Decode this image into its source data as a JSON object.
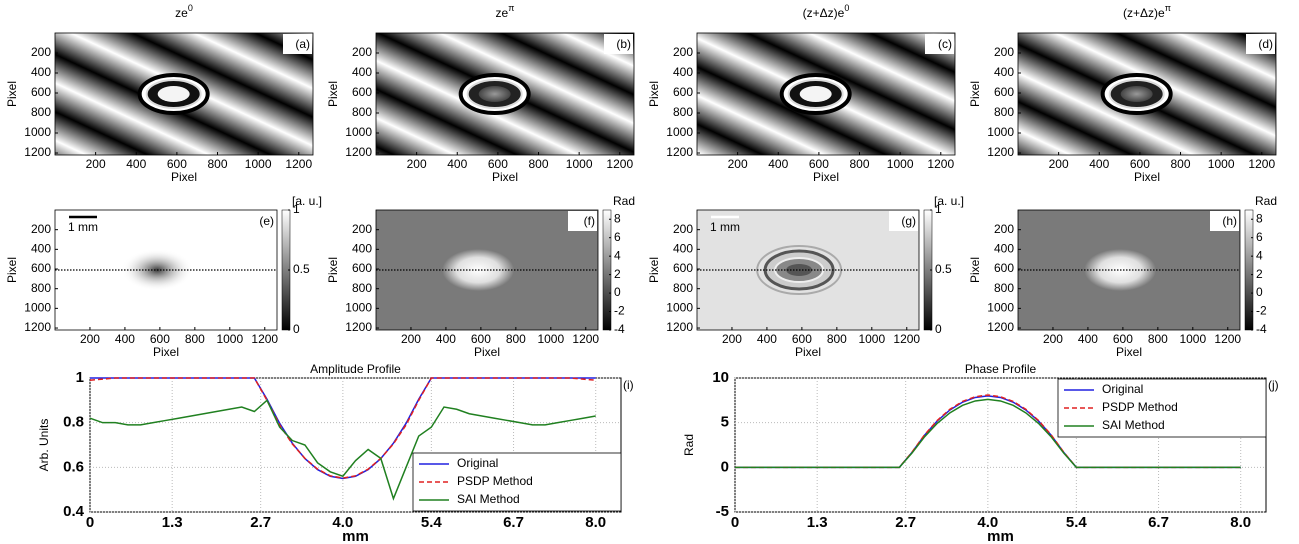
{
  "chart_data": [
    {
      "type": "image",
      "title": "ze",
      "title_superscript": "0",
      "panel_label": "(a)",
      "x_label": "Pixel",
      "y_label": "Pixel",
      "xlim": [
        0,
        1270
      ],
      "xticks": [
        200,
        400,
        600,
        800,
        1000,
        1200
      ],
      "ylim": [
        0,
        1220
      ],
      "yticks": [
        200,
        400,
        600,
        800,
        1000,
        1200
      ]
    },
    {
      "type": "image",
      "title": "ze",
      "title_superscript": "π",
      "panel_label": "(b)",
      "x_label": "Pixel",
      "y_label": "Pixel",
      "xlim": [
        0,
        1270
      ],
      "xticks": [
        200,
        400,
        600,
        800,
        1000,
        1200
      ],
      "ylim": [
        0,
        1220
      ],
      "yticks": [
        200,
        400,
        600,
        800,
        1000,
        1200
      ]
    },
    {
      "type": "image",
      "title": "(z+Δz)e",
      "title_superscript": "0",
      "panel_label": "(c)",
      "x_label": "Pixel",
      "y_label": "Pixel",
      "xlim": [
        0,
        1270
      ],
      "xticks": [
        200,
        400,
        600,
        800,
        1000,
        1200
      ],
      "ylim": [
        0,
        1220
      ],
      "yticks": [
        200,
        400,
        600,
        800,
        1000,
        1200
      ]
    },
    {
      "type": "image",
      "title": "(z+Δz)e",
      "title_superscript": "π",
      "panel_label": "(d)",
      "x_label": "Pixel",
      "y_label": "Pixel",
      "xlim": [
        0,
        1270
      ],
      "xticks": [
        200,
        400,
        600,
        800,
        1000,
        1200
      ],
      "ylim": [
        0,
        1220
      ],
      "yticks": [
        200,
        400,
        600,
        800,
        1000,
        1200
      ]
    },
    {
      "type": "image",
      "panel_label": "(e)",
      "scale_bar_label": "1 mm",
      "x_label": "Pixel",
      "y_label": "Pixel",
      "xlim": [
        0,
        1270
      ],
      "xticks": [
        200,
        400,
        600,
        800,
        1000,
        1200
      ],
      "ylim": [
        0,
        1220
      ],
      "yticks": [
        200,
        400,
        600,
        800,
        1000,
        1200
      ],
      "colorbar_label": "[a. u.]",
      "clim": [
        0,
        1
      ],
      "cticks": [
        0,
        0.5,
        1
      ]
    },
    {
      "type": "image",
      "panel_label": "(f)",
      "x_label": "Pixel",
      "y_label": "Pixel",
      "xlim": [
        0,
        1270
      ],
      "xticks": [
        200,
        400,
        600,
        800,
        1000,
        1200
      ],
      "ylim": [
        0,
        1220
      ],
      "yticks": [
        200,
        400,
        600,
        800,
        1000,
        1200
      ],
      "colorbar_label": "Rad",
      "clim": [
        -4,
        9
      ],
      "cticks": [
        -4,
        -2,
        0,
        2,
        4,
        6,
        8
      ]
    },
    {
      "type": "image",
      "panel_label": "(g)",
      "scale_bar_label": "1 mm",
      "x_label": "Pixel",
      "y_label": "Pixel",
      "xlim": [
        0,
        1270
      ],
      "xticks": [
        200,
        400,
        600,
        800,
        1000,
        1200
      ],
      "ylim": [
        0,
        1220
      ],
      "yticks": [
        200,
        400,
        600,
        800,
        1000,
        1200
      ],
      "colorbar_label": "[a. u.]",
      "clim": [
        0,
        1
      ],
      "cticks": [
        0,
        0.5,
        1
      ]
    },
    {
      "type": "image",
      "panel_label": "(h)",
      "x_label": "Pixel",
      "y_label": "Pixel",
      "xlim": [
        0,
        1270
      ],
      "xticks": [
        200,
        400,
        600,
        800,
        1000,
        1200
      ],
      "ylim": [
        0,
        1220
      ],
      "yticks": [
        200,
        400,
        600,
        800,
        1000,
        1200
      ],
      "colorbar_label": "Rad",
      "clim": [
        -4,
        9
      ],
      "cticks": [
        -4,
        -2,
        0,
        2,
        4,
        6,
        8
      ]
    },
    {
      "type": "line",
      "title": "Amplitude Profile",
      "panel_label": "(i)",
      "x_label": "mm",
      "y_label": "Arb. Units",
      "xlim": [
        0,
        8.4
      ],
      "xticks": [
        0,
        1.3,
        2.7,
        {
          "value": 4,
          "label": "4.0"
        },
        5.4,
        6.7,
        {
          "value": 8,
          "label": "8.0"
        }
      ],
      "ylim": [
        0.4,
        1
      ],
      "yticks": [
        0.4,
        0.6,
        0.8,
        1
      ],
      "grid": true,
      "legend": "lower right",
      "x": [
        0,
        0.2,
        0.4,
        0.6,
        0.8,
        1,
        1.2,
        1.4,
        1.6,
        1.8,
        2,
        2.2,
        2.4,
        2.6,
        2.8,
        3,
        3.2,
        3.4,
        3.6,
        3.8,
        4,
        4.2,
        4.4,
        4.6,
        4.8,
        5,
        5.2,
        5.4,
        5.6,
        5.8,
        6,
        6.2,
        6.4,
        6.6,
        6.8,
        7,
        7.2,
        7.4,
        7.6,
        7.8,
        8
      ],
      "series": [
        {
          "name": "Original",
          "color": "#2020e0",
          "linestyle": "solid",
          "values": [
            1,
            1,
            1,
            1,
            1,
            1,
            1,
            1,
            1,
            1,
            1,
            1,
            1,
            1,
            0.905,
            0.797,
            0.708,
            0.639,
            0.59,
            0.56,
            0.55,
            0.56,
            0.59,
            0.639,
            0.708,
            0.797,
            0.905,
            1,
            1,
            1,
            1,
            1,
            1,
            1,
            1,
            1,
            1,
            1,
            1,
            1,
            1
          ]
        },
        {
          "name": "PSDP Method",
          "color": "#e02020",
          "linestyle": "dashed",
          "values": [
            0.99,
            0.995,
            1,
            1,
            1,
            1,
            1,
            1,
            1,
            1,
            1,
            1,
            1,
            1,
            0.9,
            0.79,
            0.705,
            0.64,
            0.592,
            0.562,
            0.552,
            0.562,
            0.592,
            0.64,
            0.705,
            0.79,
            0.9,
            1,
            1,
            1,
            1,
            1,
            1,
            1,
            1,
            1,
            1,
            1,
            1,
            0.995,
            0.99
          ]
        },
        {
          "name": "SAI Method",
          "color": "#208020",
          "linestyle": "solid",
          "values": [
            0.82,
            0.8,
            0.8,
            0.79,
            0.79,
            0.8,
            0.81,
            0.82,
            0.83,
            0.84,
            0.85,
            0.86,
            0.87,
            0.85,
            0.9,
            0.78,
            0.72,
            0.7,
            0.62,
            0.58,
            0.56,
            0.63,
            0.68,
            0.64,
            0.46,
            0.6,
            0.74,
            0.78,
            0.87,
            0.86,
            0.84,
            0.83,
            0.82,
            0.81,
            0.8,
            0.79,
            0.79,
            0.8,
            0.81,
            0.82,
            0.83
          ]
        }
      ]
    },
    {
      "type": "line",
      "title": "Phase Profile",
      "panel_label": "(j)",
      "x_label": "mm",
      "y_label": "Rad",
      "xlim": [
        0,
        8.4
      ],
      "xticks": [
        0,
        1.3,
        2.7,
        {
          "value": 4,
          "label": "4.0"
        },
        5.4,
        6.7,
        {
          "value": 8,
          "label": "8.0"
        }
      ],
      "ylim": [
        -5,
        10
      ],
      "yticks": [
        -5,
        0,
        5,
        10
      ],
      "grid": true,
      "legend": "upper right",
      "x": [
        0,
        0.2,
        0.4,
        0.6,
        0.8,
        1,
        1.2,
        1.4,
        1.6,
        1.8,
        2,
        2.2,
        2.4,
        2.6,
        2.8,
        3,
        3.2,
        3.4,
        3.6,
        3.8,
        4,
        4.2,
        4.4,
        4.6,
        4.8,
        5,
        5.2,
        5.4,
        5.6,
        5.8,
        6,
        6.2,
        6.4,
        6.6,
        6.8,
        7,
        7.2,
        7.4,
        7.6,
        7.8,
        8
      ],
      "series": [
        {
          "name": "Original",
          "color": "#2020e0",
          "linestyle": "solid",
          "values": [
            0,
            0,
            0,
            0,
            0,
            0,
            0,
            0,
            0,
            0,
            0,
            0,
            0,
            0,
            1.68,
            3.61,
            5.19,
            6.42,
            7.3,
            7.82,
            8,
            7.82,
            7.3,
            6.42,
            5.19,
            3.61,
            1.68,
            0,
            0,
            0,
            0,
            0,
            0,
            0,
            0,
            0,
            0,
            0,
            0,
            0,
            0
          ]
        },
        {
          "name": "PSDP Method",
          "color": "#e02020",
          "linestyle": "dashed",
          "values": [
            0,
            0,
            0,
            0,
            0,
            0,
            0,
            0,
            0,
            0,
            0,
            0,
            0,
            0,
            1.7,
            3.65,
            5.25,
            6.5,
            7.38,
            7.9,
            8.1,
            7.9,
            7.38,
            6.5,
            5.25,
            3.65,
            1.7,
            0,
            0,
            0,
            0,
            0,
            0,
            0,
            0,
            0,
            0,
            0,
            0,
            0,
            0
          ]
        },
        {
          "name": "SAI Method",
          "color": "#208020",
          "linestyle": "solid",
          "values": [
            0,
            0,
            0,
            0,
            0,
            0,
            0,
            0,
            0,
            0,
            0,
            0,
            0,
            0,
            1.6,
            3.43,
            4.93,
            6.1,
            6.94,
            7.43,
            7.6,
            7.43,
            6.94,
            6.1,
            4.93,
            3.43,
            1.6,
            0,
            0,
            0,
            0,
            0,
            0,
            0,
            0,
            0,
            0,
            0,
            0,
            0,
            0
          ]
        }
      ]
    }
  ]
}
